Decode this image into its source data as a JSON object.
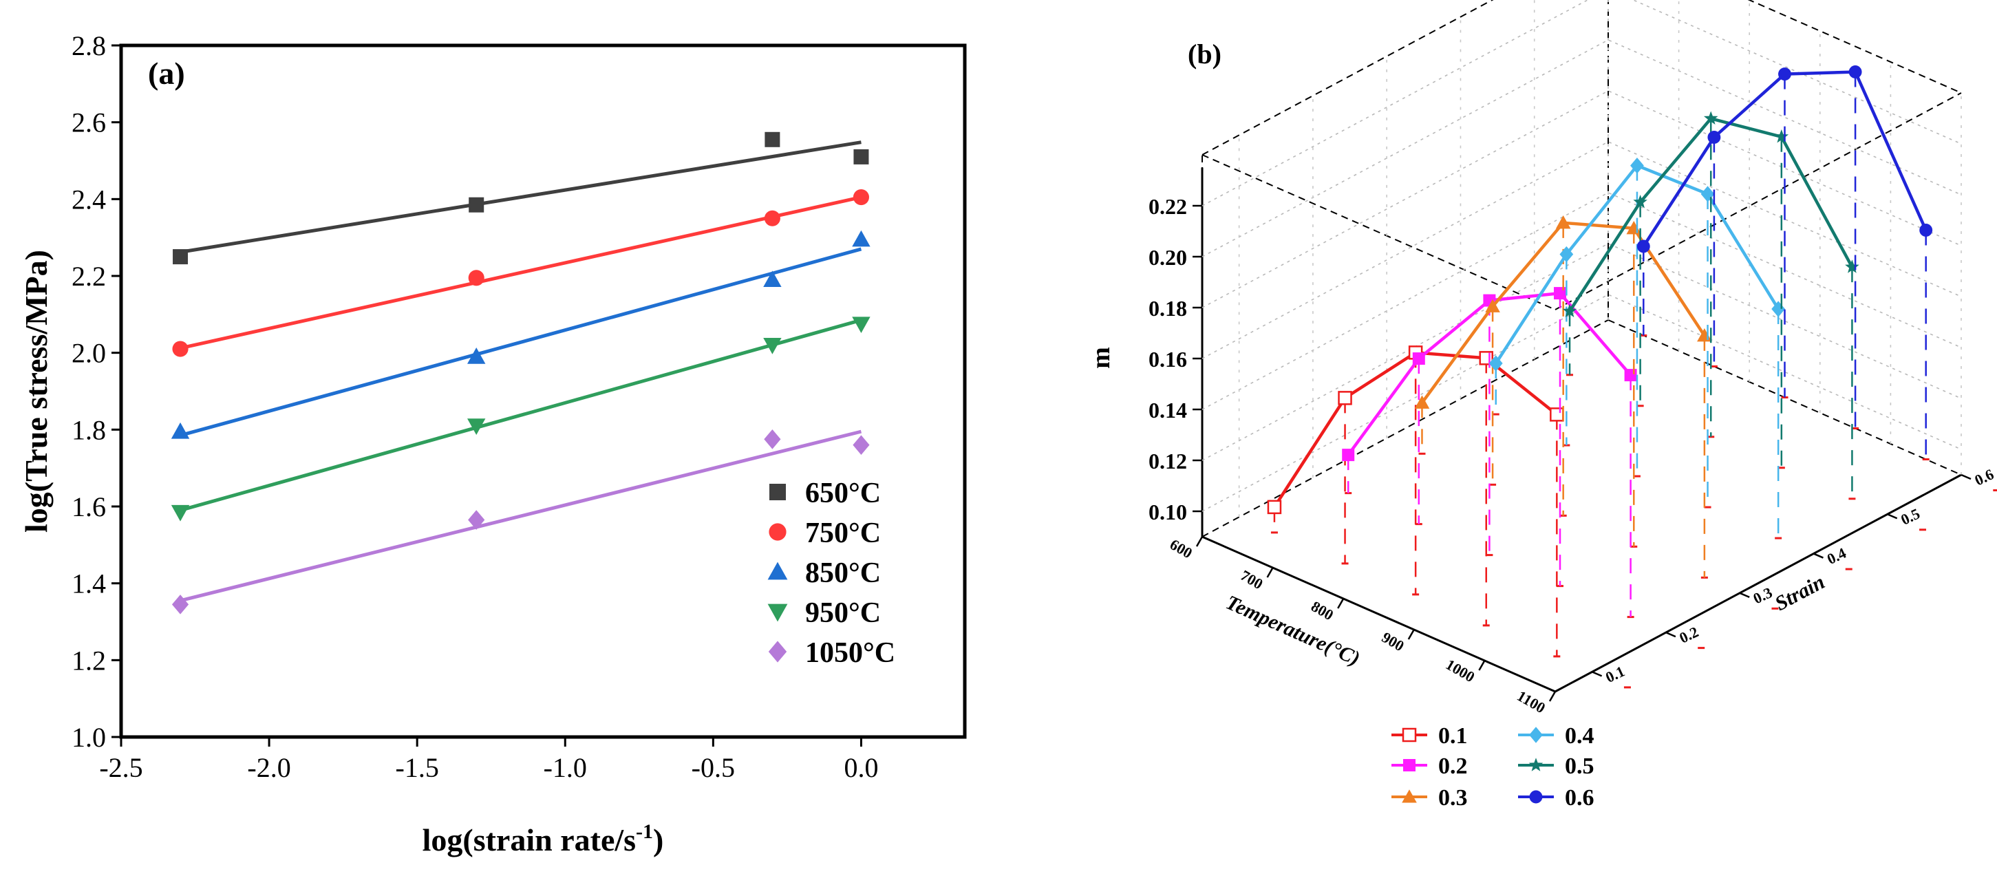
{
  "chart_data": [
    {
      "panel_label": "(a)",
      "type": "scatter",
      "xlabel_main": "log(strain rate/s",
      "xlabel_sup": "-1",
      "xlabel_close": ")",
      "ylabel": "log(True stress/MPa)",
      "xlim": [
        -2.5,
        0.35
      ],
      "ylim": [
        1.0,
        2.8
      ],
      "xticks": [
        "-2.5",
        "-2.0",
        "-1.5",
        "-1.0",
        "-0.5",
        "0.0"
      ],
      "xtick_values": [
        -2.5,
        -2.0,
        -1.5,
        -1.0,
        -0.5,
        0.0
      ],
      "yticks": [
        "1.0",
        "1.2",
        "1.4",
        "1.6",
        "1.8",
        "2.0",
        "2.2",
        "2.4",
        "2.6",
        "2.8"
      ],
      "ytick_values": [
        1.0,
        1.2,
        1.4,
        1.6,
        1.8,
        2.0,
        2.2,
        2.4,
        2.6,
        2.8
      ],
      "legend_position": "bottom-right",
      "x": [
        -2.3,
        -1.3,
        -0.3,
        0.0
      ],
      "series": [
        {
          "name": "650°C",
          "marker": "square",
          "color": "#3f3f3f",
          "values": [
            2.25,
            2.385,
            2.555,
            2.51
          ],
          "fit": [
            2.262,
            2.548
          ]
        },
        {
          "name": "750°C",
          "marker": "circle",
          "color": "#ff3a3a",
          "values": [
            2.01,
            2.195,
            2.35,
            2.405
          ],
          "fit": [
            2.012,
            2.405
          ]
        },
        {
          "name": "850°C",
          "marker": "triangle-up",
          "color": "#1f6fd1",
          "values": [
            1.795,
            1.99,
            2.19,
            2.295
          ],
          "fit": [
            1.785,
            2.27
          ]
        },
        {
          "name": "950°C",
          "marker": "triangle-down",
          "color": "#2f9e5c",
          "values": [
            1.585,
            1.81,
            2.02,
            2.075
          ],
          "fit": [
            1.59,
            2.085
          ]
        },
        {
          "name": "1050°C",
          "marker": "diamond",
          "color": "#b57ad8",
          "values": [
            1.345,
            1.565,
            1.775,
            1.76
          ],
          "fit": [
            1.355,
            1.795
          ]
        }
      ]
    },
    {
      "panel_label": "(b)",
      "type": "line",
      "projection": "3d",
      "zlabel": "m",
      "xlabel": "Temperature(°C)",
      "ylabel": "Strain",
      "zlim": [
        0.09,
        0.24
      ],
      "zticks": [
        "0.10",
        "0.12",
        "0.14",
        "0.16",
        "0.18",
        "0.20",
        "0.22"
      ],
      "ztick_values": [
        0.1,
        0.12,
        0.14,
        0.16,
        0.18,
        0.2,
        0.22
      ],
      "xticks": [
        "600",
        "700",
        "800",
        "900",
        "1000",
        "1100"
      ],
      "xtick_values": [
        600,
        700,
        800,
        900,
        1000,
        1100
      ],
      "yticks": [
        "0.1",
        "0.2",
        "0.3",
        "0.4",
        "0.5",
        "0.6"
      ],
      "ytick_values": [
        0.1,
        0.2,
        0.3,
        0.4,
        0.5,
        0.6
      ],
      "x": [
        650,
        750,
        850,
        950,
        1050
      ],
      "legend_position": "bottom",
      "series": [
        {
          "name": "0.1",
          "marker": "open-square",
          "color": "#ee1c1c",
          "strain": 0.1,
          "values": [
            0.1,
            0.155,
            0.185,
            0.195,
            0.185
          ]
        },
        {
          "name": "0.2",
          "marker": "square",
          "color": "#ff1aff",
          "strain": 0.2,
          "values": [
            0.105,
            0.155,
            0.19,
            0.205,
            0.185
          ]
        },
        {
          "name": "0.3",
          "marker": "triangle-up",
          "color": "#ef7f22",
          "strain": 0.3,
          "values": [
            0.11,
            0.16,
            0.205,
            0.215,
            0.185
          ]
        },
        {
          "name": "0.4",
          "marker": "diamond",
          "color": "#47b6ec",
          "strain": 0.4,
          "values": [
            0.11,
            0.165,
            0.212,
            0.213,
            0.18
          ]
        },
        {
          "name": "0.5",
          "marker": "star",
          "color": "#127a6e",
          "strain": 0.5,
          "values": [
            0.115,
            0.17,
            0.215,
            0.22,
            0.181
          ]
        },
        {
          "name": "0.6",
          "marker": "circle",
          "color": "#1f24d8",
          "strain": 0.6,
          "values": [
            0.125,
            0.18,
            0.217,
            0.23,
            0.18
          ]
        }
      ]
    }
  ]
}
